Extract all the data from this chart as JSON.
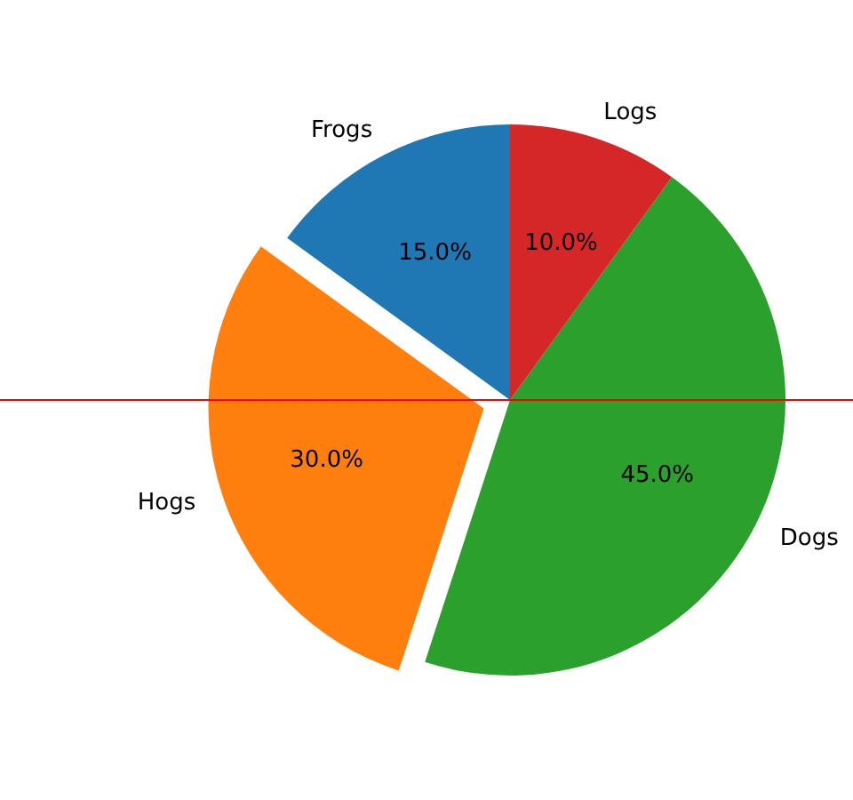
{
  "chart_data": {
    "type": "pie",
    "categories": [
      "Frogs",
      "Hogs",
      "Dogs",
      "Logs"
    ],
    "values": [
      15,
      30,
      45,
      10
    ],
    "value_labels": [
      "15.0%",
      "30.0%",
      "45.0%",
      "10.0%"
    ],
    "colors": [
      "#1f77b4",
      "#ff7f0e",
      "#2ca02c",
      "#d62728"
    ]
  }
}
